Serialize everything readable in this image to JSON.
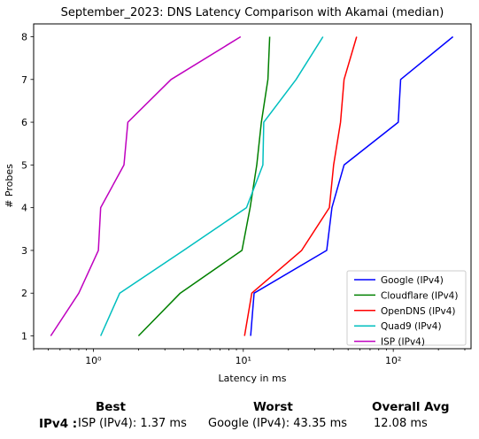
{
  "chart_data": {
    "type": "line",
    "title": "September_2023: DNS Latency Comparison with Akamai (median)",
    "xlabel": "Latency in ms",
    "ylabel": "# Probes",
    "xscale": "log",
    "xlim": [
      0.4,
      330
    ],
    "ylim": [
      0.7,
      8.3
    ],
    "xticks": [
      1,
      10,
      100
    ],
    "xtick_labels": [
      "10⁰",
      "10¹",
      "10²"
    ],
    "yticks": [
      1,
      2,
      3,
      4,
      5,
      6,
      7,
      8
    ],
    "grid": false,
    "legend_position": "lower-right",
    "series": [
      {
        "name": "Google (IPv4)",
        "color": "#0000ff",
        "x": [
          11.2,
          11.8,
          36,
          39,
          47,
          108,
          112,
          250
        ],
        "y": [
          1,
          2,
          3,
          4,
          5,
          6,
          7,
          8
        ]
      },
      {
        "name": "Cloudflare (IPv4)",
        "color": "#008000",
        "x": [
          2.0,
          3.8,
          9.8,
          11.1,
          12.3,
          13.2,
          14.6,
          15.0
        ],
        "y": [
          1,
          2,
          3,
          4,
          5,
          6,
          7,
          8
        ]
      },
      {
        "name": "OpenDNS (IPv4)",
        "color": "#ff0000",
        "x": [
          10.2,
          11.4,
          24.5,
          37.5,
          40.0,
          44.5,
          47.0,
          57.0
        ],
        "y": [
          1,
          2,
          3,
          4,
          5,
          6,
          7,
          8
        ]
      },
      {
        "name": "Quad9 (IPv4)",
        "color": "#00bfbf",
        "x": [
          1.12,
          1.5,
          4.0,
          10.5,
          13.5,
          13.7,
          22.5,
          34.0
        ],
        "y": [
          1,
          2,
          3,
          4,
          5,
          6,
          7,
          8
        ]
      },
      {
        "name": "ISP (IPv4)",
        "color": "#bf00bf",
        "x": [
          0.52,
          0.8,
          1.08,
          1.12,
          1.6,
          1.7,
          3.3,
          9.6
        ],
        "y": [
          1,
          2,
          3,
          4,
          5,
          6,
          7,
          8
        ]
      }
    ]
  },
  "summary": {
    "headers": {
      "best": "Best",
      "worst": "Worst",
      "overall_avg": "Overall Avg"
    },
    "row_label": "IPv4 :",
    "best": "ISP (IPv4): 1.37 ms",
    "worst": "Google (IPv4): 43.35 ms",
    "overall_avg": "12.08 ms"
  }
}
